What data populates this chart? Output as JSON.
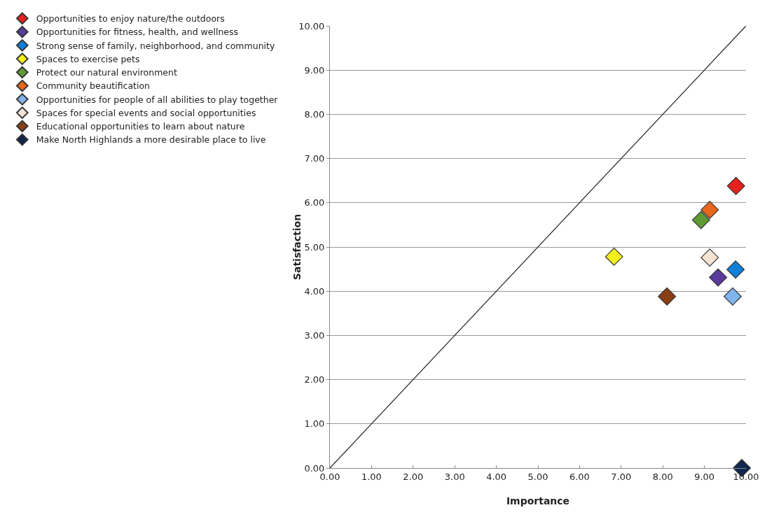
{
  "chart_data": {
    "type": "scatter",
    "xlabel": "Importance",
    "ylabel": "Satisfaction",
    "xlim": [
      0,
      10
    ],
    "ylim": [
      0,
      10
    ],
    "xticks": [
      {
        "value": 0,
        "label": "0.00"
      },
      {
        "value": 1,
        "label": "1.00"
      },
      {
        "value": 2,
        "label": "2.00"
      },
      {
        "value": 3,
        "label": "3.00"
      },
      {
        "value": 4,
        "label": "4.00"
      },
      {
        "value": 5,
        "label": "5.00"
      },
      {
        "value": 6,
        "label": "6.00"
      },
      {
        "value": 7,
        "label": "7.00"
      },
      {
        "value": 8,
        "label": "8.00"
      },
      {
        "value": 9,
        "label": "9.00"
      },
      {
        "value": 10,
        "label": "10.00"
      }
    ],
    "yticks": [
      {
        "value": 0,
        "label": "0.00"
      },
      {
        "value": 1,
        "label": "1.00"
      },
      {
        "value": 2,
        "label": "2.00"
      },
      {
        "value": 3,
        "label": "3.00"
      },
      {
        "value": 4,
        "label": "4.00"
      },
      {
        "value": 5,
        "label": "5.00"
      },
      {
        "value": 6,
        "label": "6.00"
      },
      {
        "value": 7,
        "label": "7.00"
      },
      {
        "value": 8,
        "label": "8.00"
      },
      {
        "value": 9,
        "label": "9.00"
      },
      {
        "value": 10,
        "label": "10.00"
      }
    ],
    "grid": "y",
    "legend": "left",
    "marker": "diamond",
    "series": [
      {
        "name": "Opportunities to enjoy nature/the outdoors",
        "color": "#e8201c",
        "x": [
          9.76
        ],
        "values": [
          6.38
        ]
      },
      {
        "name": "Opportunities for fitness, health, and wellness",
        "color": "#5a3a9a",
        "x": [
          9.33
        ],
        "values": [
          4.31
        ]
      },
      {
        "name": "Strong sense of family, neighborhood, and community",
        "color": "#0f7fd8",
        "x": [
          9.75
        ],
        "values": [
          4.49
        ]
      },
      {
        "name": "Spaces to exercise pets",
        "color": "#f5f01a",
        "x": [
          6.83
        ],
        "values": [
          4.78
        ]
      },
      {
        "name": "Protect our natural environment",
        "color": "#5f9a35",
        "x": [
          8.92
        ],
        "values": [
          5.61
        ]
      },
      {
        "name": "Community beautification",
        "color": "#e8661e",
        "x": [
          9.13
        ],
        "values": [
          5.84
        ]
      },
      {
        "name": "Opportunities for people of all abilities to play together",
        "color": "#7fb4ec",
        "x": [
          9.68
        ],
        "values": [
          3.88
        ]
      },
      {
        "name": "Spaces for special events and social opportunities",
        "color": "#f6e3d3",
        "x": [
          9.13
        ],
        "values": [
          4.76
        ]
      },
      {
        "name": "Educational opportunities to learn about nature",
        "color": "#8a3e14",
        "x": [
          8.1
        ],
        "values": [
          3.88
        ]
      },
      {
        "name": "Make North Highlands a more desirable place to live",
        "color": "#10264e",
        "x": [
          9.9
        ],
        "values": [
          0
        ]
      },
      {
        "type": "line",
        "color": "#222222",
        "marker": "none",
        "x": [
          0,
          10
        ],
        "values": [
          0,
          10
        ]
      }
    ]
  }
}
